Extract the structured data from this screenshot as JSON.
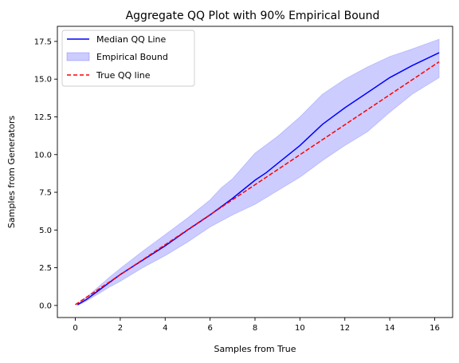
{
  "chart_data": {
    "type": "line",
    "title": "Aggregate QQ Plot with 90% Empirical Bound",
    "xlabel": "Samples from True",
    "ylabel": "Samples from Generators",
    "xlim": [
      -0.8,
      16.8
    ],
    "ylim": [
      -0.8,
      18.5
    ],
    "xticks": [
      0,
      2,
      4,
      6,
      8,
      10,
      12,
      14,
      16
    ],
    "xtick_labels": [
      "0",
      "2",
      "4",
      "6",
      "8",
      "10",
      "12",
      "14",
      "16"
    ],
    "yticks": [
      0.0,
      2.5,
      5.0,
      7.5,
      10.0,
      12.5,
      15.0,
      17.5
    ],
    "ytick_labels": [
      "0.0",
      "2.5",
      "5.0",
      "7.5",
      "10.0",
      "12.5",
      "15.0",
      "17.5"
    ],
    "grid": false,
    "legend": {
      "position": "top-left",
      "entries": [
        "Median QQ Line",
        "Empirical Bound",
        "True QQ line"
      ]
    },
    "series": [
      {
        "name": "Median QQ Line",
        "kind": "line",
        "color": "#0000ff",
        "style": "solid",
        "x": [
          0.1,
          0.5,
          1.0,
          1.5,
          2.0,
          3.0,
          4.0,
          5.0,
          6.0,
          7.0,
          8.0,
          8.5,
          9.0,
          10.0,
          11.0,
          12.0,
          13.0,
          14.0,
          15.0,
          16.2
        ],
        "y": [
          0.05,
          0.4,
          0.95,
          1.5,
          2.05,
          3.0,
          3.95,
          5.0,
          6.0,
          7.1,
          8.3,
          8.8,
          9.4,
          10.6,
          12.0,
          13.1,
          14.1,
          15.1,
          15.9,
          16.75
        ]
      },
      {
        "name": "Empirical Bound",
        "kind": "band",
        "color": "#0000ff",
        "opacity": 0.2,
        "x": [
          0.1,
          0.5,
          1.0,
          1.5,
          2.0,
          3.0,
          4.0,
          5.0,
          6.0,
          6.5,
          7.0,
          8.0,
          9.0,
          10.0,
          11.0,
          12.0,
          13.0,
          14.0,
          15.0,
          16.2
        ],
        "lower": [
          0.0,
          0.3,
          0.75,
          1.2,
          1.6,
          2.5,
          3.3,
          4.2,
          5.2,
          5.6,
          6.0,
          6.7,
          7.6,
          8.5,
          9.6,
          10.6,
          11.5,
          12.8,
          14.0,
          15.1
        ],
        "upper": [
          0.1,
          0.55,
          1.2,
          1.85,
          2.45,
          3.6,
          4.7,
          5.8,
          7.0,
          7.8,
          8.4,
          10.1,
          11.2,
          12.5,
          14.0,
          15.0,
          15.8,
          16.5,
          17.0,
          17.65
        ]
      },
      {
        "name": "True QQ line",
        "kind": "line",
        "color": "#ff0000",
        "style": "dashed",
        "x": [
          0.0,
          16.2
        ],
        "y": [
          0.05,
          16.15
        ]
      }
    ]
  }
}
